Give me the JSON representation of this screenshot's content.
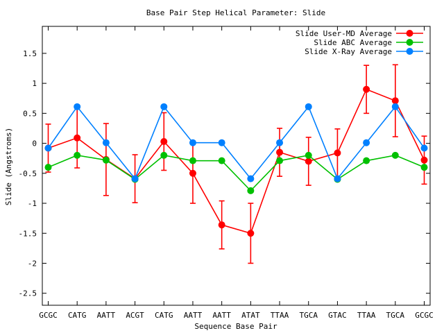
{
  "chart_data": {
    "type": "line",
    "title": "Base Pair Step Helical Parameter: Slide",
    "xlabel": "Sequence Base Pair",
    "ylabel": "Slide (Angstroms)",
    "categories": [
      "GCGC",
      "CATG",
      "AATT",
      "ACGT",
      "CATG",
      "AATT",
      "AATT",
      "ATAT",
      "TTAA",
      "TGCA",
      "GTAC",
      "TTAA",
      "TGCA",
      "GCGC"
    ],
    "ylim": [
      -2.7,
      1.95
    ],
    "y_ticks": [
      -2.5,
      -2,
      -1.5,
      -1,
      -0.5,
      0,
      0.5,
      1,
      1.5
    ],
    "y_tick_labels": [
      "-2.5",
      "-2",
      "-1.5",
      "-1",
      "-0.5",
      "0",
      "0.5",
      "1",
      "1.5"
    ],
    "grid": false,
    "legend_position": "top-right",
    "series": [
      {
        "name": "Slide User-MD Average",
        "color": "#ff0000",
        "values": [
          -0.08,
          0.09,
          -0.27,
          -0.59,
          0.03,
          -0.5,
          -1.36,
          -1.5,
          -0.15,
          -0.3,
          -0.16,
          0.9,
          0.71,
          -0.28
        ],
        "error": [
          0.4,
          0.5,
          0.6,
          0.4,
          0.48,
          0.5,
          0.4,
          0.5,
          0.4,
          0.4,
          0.4,
          0.4,
          0.6,
          0.4
        ]
      },
      {
        "name": "Slide ABC Average",
        "color": "#00c000",
        "values": [
          -0.4,
          -0.2,
          -0.28,
          -0.6,
          -0.2,
          -0.29,
          -0.29,
          -0.79,
          -0.29,
          -0.2,
          -0.6,
          -0.29,
          -0.2,
          -0.4
        ]
      },
      {
        "name": "Slide X-Ray Average",
        "color": "#0080ff",
        "values": [
          -0.08,
          0.61,
          0.01,
          -0.59,
          0.61,
          0.01,
          0.01,
          -0.59,
          0.01,
          0.61,
          -0.59,
          0.01,
          0.61,
          -0.08
        ]
      }
    ]
  }
}
